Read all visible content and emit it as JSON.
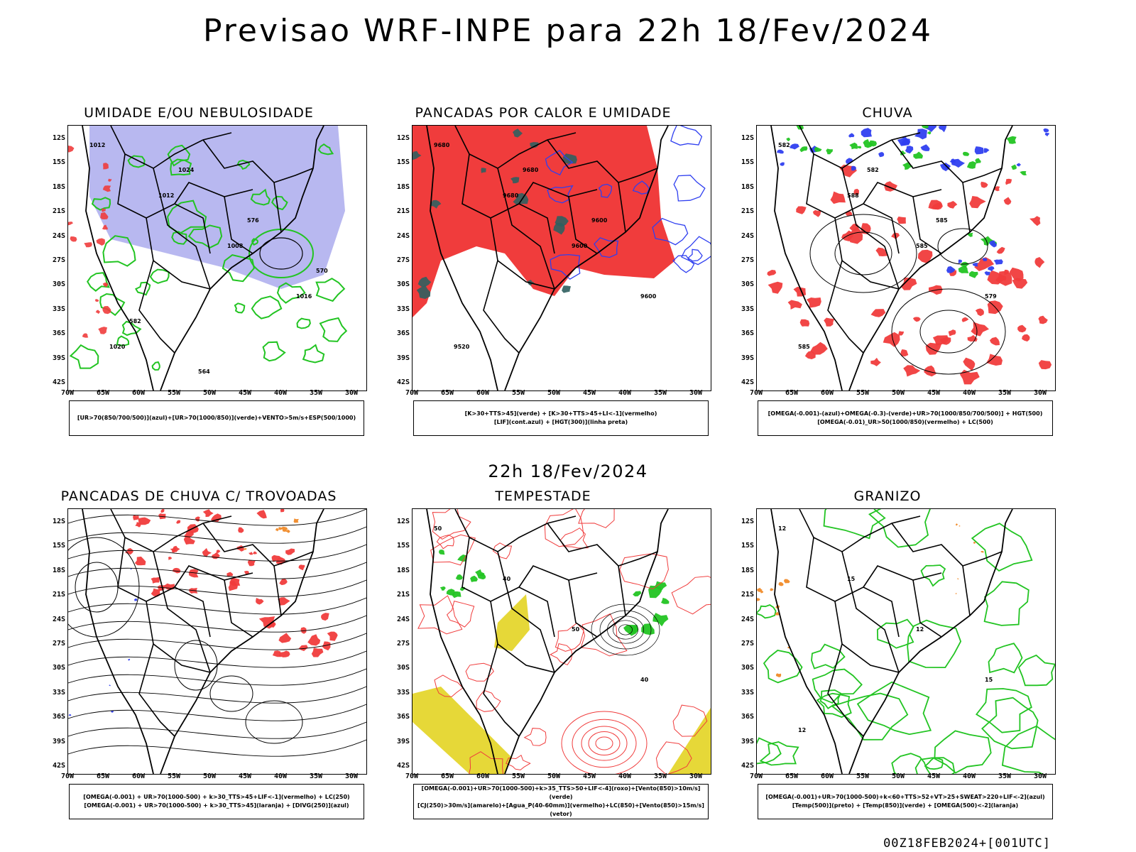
{
  "title": "Previsao WRF-INPE  para 22h 18/Fev/2024",
  "mid_title": "22h 18/Fev/2024",
  "footer": "00Z18FEB2024+[001UTC]",
  "lat_labels": [
    "12S",
    "15S",
    "18S",
    "21S",
    "24S",
    "27S",
    "30S",
    "33S",
    "36S",
    "39S",
    "42S"
  ],
  "lon_labels": [
    "70W",
    "65W",
    "60W",
    "55W",
    "50W",
    "45W",
    "40W",
    "35W",
    "30W"
  ],
  "colors": {
    "red": "#f03c3c",
    "green": "#22c422",
    "blue": "#2f3ff0",
    "lavender": "#b8b8f0",
    "teal": "#2f5f5f",
    "yellow": "#e6d838",
    "orange": "#f08a28"
  },
  "panels": [
    {
      "title": "UMIDADE E/OU NEBULOSIDADE",
      "legend": [
        "[UR>70(850/700/500)](azul)+[UR>70(1000/850)](verde)+VENTO>5m/s+ESP(500/1000)"
      ],
      "contours": [
        "1012",
        "1012",
        "1008",
        "1016",
        "1020",
        "1024",
        "576",
        "570",
        "582",
        "564"
      ]
    },
    {
      "title": "PANCADAS POR CALOR E UMIDADE",
      "legend": [
        "[K>30+TTS>45](verde) + [K>30+TTS>45+LI<-1](vermelho)",
        "[LIF](cont.azul) + [HGT(300)](linha preta)"
      ],
      "contours": [
        "9680",
        "9680",
        "9600",
        "9600",
        "9520",
        "9680",
        "9600"
      ]
    },
    {
      "title": "CHUVA",
      "legend": [
        "[OMEGA(-0.001)-(azul)+OMEGA(-0.3)-(verde)+UR>70(1000/850/700/500)] + HGT(500)",
        "[OMEGA(-0.01)_UR>50(1000/850)(vermelho) + LC(500)"
      ],
      "contours": [
        "582",
        "588",
        "585",
        "579",
        "585",
        "582",
        "585"
      ]
    },
    {
      "title": "PANCADAS DE CHUVA C/ TROVOADAS",
      "legend": [
        "[OMEGA(-0.001) + UR>70(1000-500) + k>30_TTS>45+LIF<-1](vermelho) + LC(250)",
        "[OMEGA(-0.001) + UR>70(1000-500) + k>30_TTS>45](laranja) + [DIVG(250)](azul)"
      ],
      "contours": []
    },
    {
      "title": "TEMPESTADE",
      "legend": [
        "[OMEGA(-0.001)+UR>70(1000-500)+k>35_TTS>50+LIF<-4](roxo)+[Vento(850)>10m/s](verde)",
        "[CJ(250)>30m/s](amarelo)+[Agua_P(40-60mm)](vermelho)+LC(850)+[Vento(850)>15m/s](vetor)"
      ],
      "contours": [
        "50",
        "40",
        "50",
        "40"
      ]
    },
    {
      "title": "GRANIZO",
      "legend": [
        "[OMEGA(-0.001)+UR>70(1000-500)+k<60+TTS>52+VT>25+SWEAT>220+LIF<-2](azul)",
        "[Temp(500)](preto) + [Temp(850)](verde) + [OMEGA(500)<-2](laranja)"
      ],
      "contours": [
        "12",
        "15",
        "12",
        "15",
        "12"
      ]
    }
  ]
}
